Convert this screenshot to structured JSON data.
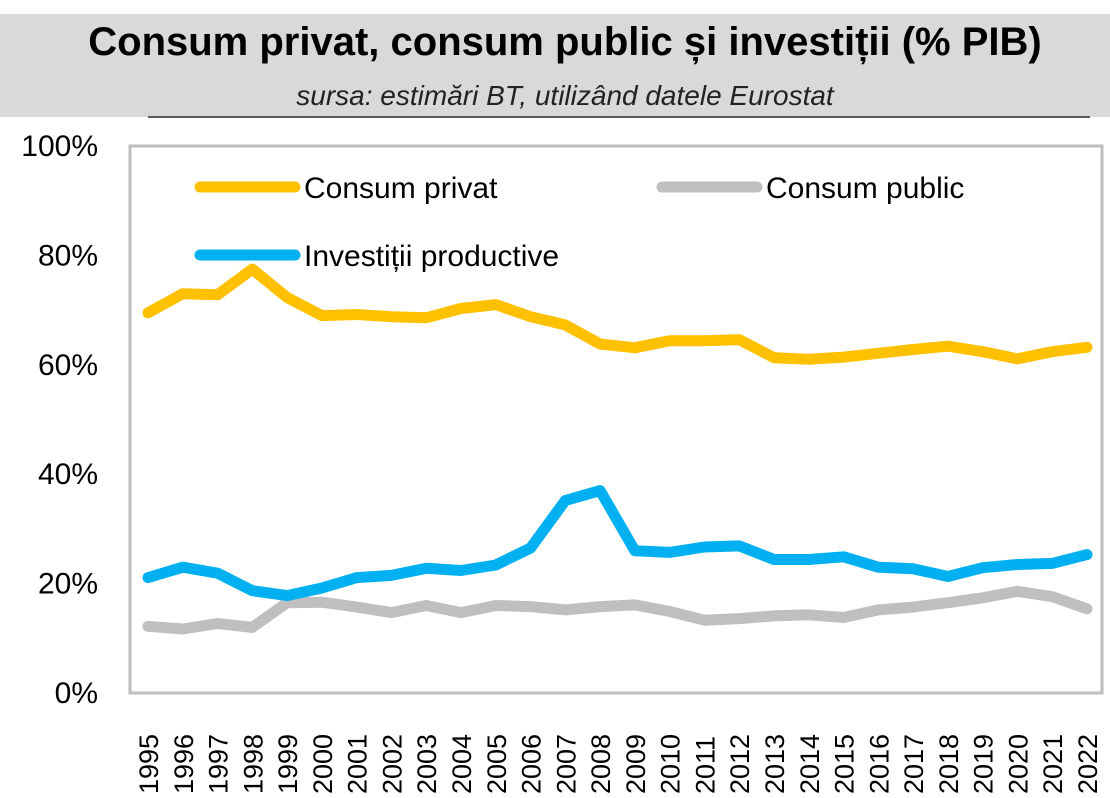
{
  "chart_data": {
    "type": "line",
    "title": "Consum privat, consum public și investiții (% PIB)",
    "subtitle": "sursa: estimări BT, utilizând datele Eurostat",
    "xlabel": "",
    "ylabel": "",
    "ylim": [
      0,
      100
    ],
    "y_ticks": [
      "0%",
      "20%",
      "40%",
      "60%",
      "80%",
      "100%"
    ],
    "y_tick_values": [
      0,
      20,
      40,
      60,
      80,
      100
    ],
    "grid": false,
    "legend_position": "top-inside",
    "categories": [
      "1995",
      "1996",
      "1997",
      "1998",
      "1999",
      "2000",
      "2001",
      "2002",
      "2003",
      "2004",
      "2005",
      "2006",
      "2007",
      "2008",
      "2009",
      "2010",
      "2011",
      "2012",
      "2013",
      "2014",
      "2015",
      "2016",
      "2017",
      "2018",
      "2019",
      "2020",
      "2021",
      "2022"
    ],
    "series": [
      {
        "name": "Consum privat",
        "color": "#ffc000",
        "values": [
          69.5,
          73.0,
          72.8,
          77.5,
          72.3,
          69.0,
          69.2,
          68.8,
          68.6,
          70.3,
          71.0,
          68.8,
          67.3,
          63.8,
          63.1,
          64.4,
          64.4,
          64.6,
          61.3,
          61.0,
          61.4,
          62.1,
          62.8,
          63.4,
          62.4,
          61.1,
          62.4,
          63.2
        ]
      },
      {
        "name": "Consum public",
        "color": "#bfbfbf",
        "values": [
          12.2,
          11.7,
          12.7,
          12.0,
          16.5,
          16.6,
          15.7,
          14.7,
          16.0,
          14.7,
          16.0,
          15.8,
          15.2,
          15.8,
          16.1,
          14.9,
          13.3,
          13.6,
          14.1,
          14.3,
          13.8,
          15.2,
          15.7,
          16.5,
          17.4,
          18.6,
          17.6,
          15.4
        ]
      },
      {
        "name": "Investiții productive",
        "color": "#00b0f0",
        "values": [
          21.1,
          23.0,
          21.9,
          18.7,
          17.8,
          19.2,
          21.1,
          21.5,
          22.8,
          22.4,
          23.4,
          26.5,
          35.2,
          37.0,
          26.0,
          25.7,
          26.7,
          26.9,
          24.4,
          24.4,
          24.9,
          23.0,
          22.7,
          21.3,
          22.9,
          23.5,
          23.7,
          25.3
        ]
      }
    ]
  }
}
